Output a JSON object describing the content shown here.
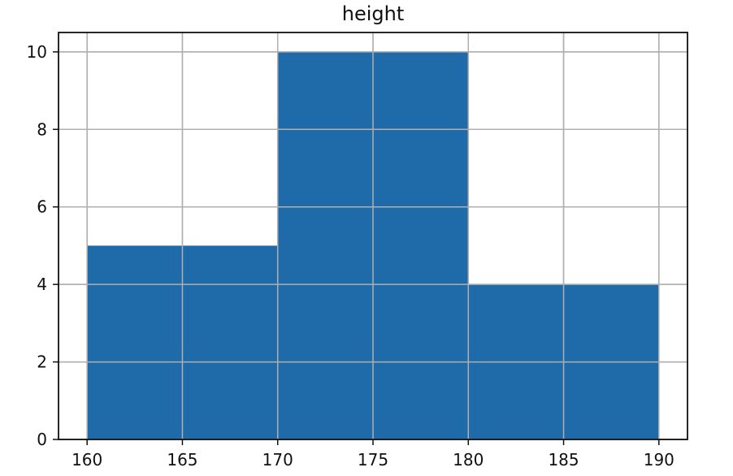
{
  "chart_data": {
    "type": "bar",
    "title": "height",
    "xlabel": "",
    "ylabel": "",
    "bins": [
      {
        "start": 160,
        "end": 170,
        "value": 5
      },
      {
        "start": 170,
        "end": 180,
        "value": 10
      },
      {
        "start": 180,
        "end": 190,
        "value": 4
      }
    ],
    "x_ticks": [
      160,
      165,
      170,
      175,
      180,
      185,
      190
    ],
    "y_ticks": [
      0,
      2,
      4,
      6,
      8,
      10
    ],
    "xlim": [
      158.5,
      191.5
    ],
    "ylim": [
      0,
      10.5
    ],
    "grid": true,
    "bar_color": "#1f6aa8",
    "grid_color": "#b0b0b0",
    "axis_color": "#111111"
  }
}
